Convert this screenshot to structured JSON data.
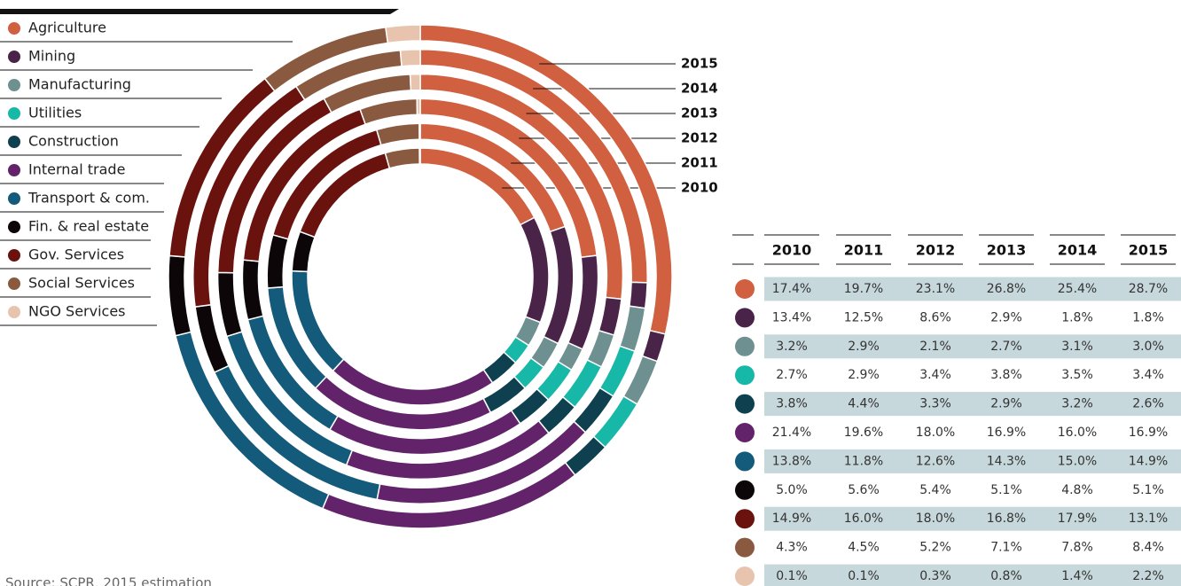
{
  "chart_data": {
    "type": "donut",
    "categories": [
      "Agriculture",
      "Mining",
      "Manufacturing",
      "Utilities",
      "Construction",
      "Internal trade",
      "Transport & com.",
      "Fin. & real estate",
      "Gov. Services",
      "Social Services",
      "NGO Services"
    ],
    "colors": [
      "#d0603f",
      "#4a2349",
      "#6e9090",
      "#18b8a8",
      "#0f4050",
      "#62236a",
      "#145a7a",
      "#0d0608",
      "#6a120e",
      "#8a5a40",
      "#e8c4ae"
    ],
    "series": [
      {
        "name": "2010",
        "values": [
          17.4,
          13.4,
          3.2,
          2.7,
          3.8,
          21.4,
          13.8,
          5,
          14.9,
          4.3,
          0.1
        ],
        "value_labels": [
          "17.4%",
          "13.4%",
          "3.2%",
          "2.7%",
          "3.8%",
          "21.4%",
          "13.8%",
          "5.0%",
          "14.9%",
          "4.3%",
          "0.1%"
        ]
      },
      {
        "name": "2011",
        "values": [
          19.7,
          12.5,
          2.9,
          2.9,
          4.4,
          19.6,
          11.8,
          5.6,
          16,
          4.5,
          0.1
        ],
        "value_labels": [
          "19.7%",
          "12.5%",
          "2.9%",
          "2.9%",
          "4.4%",
          "19.6%",
          "11.8%",
          "5.6%",
          "16.0%",
          "4.5%",
          "0.1%"
        ]
      },
      {
        "name": "2012",
        "values": [
          23.1,
          8.6,
          2.1,
          3.4,
          3.3,
          18,
          12.6,
          5.4,
          18,
          5.2,
          0.3
        ],
        "value_labels": [
          "23.1%",
          "8.6%",
          "2.1%",
          "3.4%",
          "3.3%",
          "18.0%",
          "12.6%",
          "5.4%",
          "18.0%",
          "5.2%",
          "0.3%"
        ]
      },
      {
        "name": "2013",
        "values": [
          26.8,
          2.9,
          2.7,
          3.8,
          2.9,
          16.9,
          14.3,
          5.1,
          16.8,
          7.1,
          0.8
        ],
        "value_labels": [
          "26.8%",
          "2.9%",
          "2.7%",
          "3.8%",
          "2.9%",
          "16.9%",
          "14.3%",
          "5.1%",
          "16.8%",
          "7.1%",
          "0.8%"
        ]
      },
      {
        "name": "2014",
        "values": [
          25.4,
          1.8,
          3.1,
          3.5,
          3.2,
          16,
          15,
          4.8,
          17.9,
          7.8,
          1.4
        ],
        "value_labels": [
          "25.4%",
          "1.8%",
          "3.1%",
          "3.5%",
          "3.2%",
          "16.0%",
          "15.0%",
          "4.8%",
          "17.9%",
          "7.8%",
          "1.4%"
        ]
      },
      {
        "name": "2015",
        "values": [
          28.7,
          1.8,
          3,
          3.4,
          2.6,
          16.9,
          14.9,
          5.1,
          13.1,
          8.4,
          2.2
        ],
        "value_labels": [
          "28.7%",
          "1.8%",
          "3.0%",
          "3.4%",
          "2.6%",
          "16.9%",
          "14.9%",
          "5.1%",
          "13.1%",
          "8.4%",
          "2.2%"
        ]
      }
    ],
    "source": "Source: SCPR, 2015 estimation"
  }
}
